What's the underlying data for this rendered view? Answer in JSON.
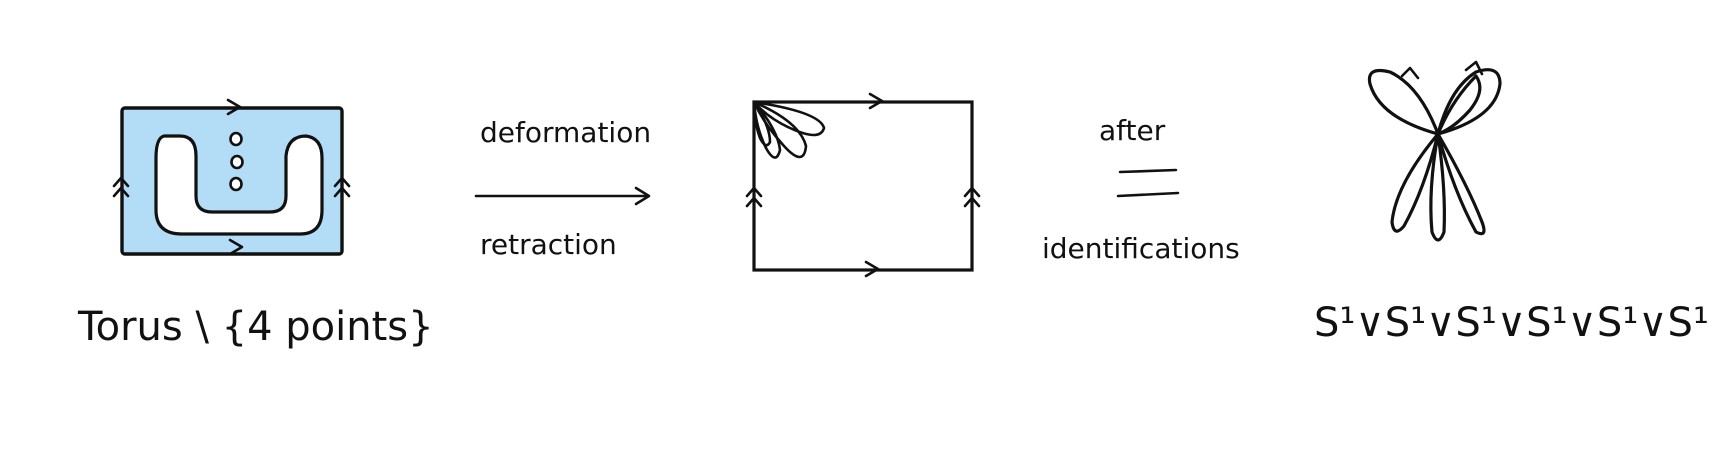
{
  "colors": {
    "ink": "#111111",
    "torus_fill": "#b3dcf6",
    "background": "#ffffff"
  },
  "torus": {
    "label": "Torus \\ {4 points}"
  },
  "arrow": {
    "top_label": "deformation",
    "bottom_label": "retraction"
  },
  "equivalence": {
    "top_label": "after",
    "bottom_label": "identifications"
  },
  "wedge": {
    "label": "S¹∨S¹∨S¹∨S¹∨S¹∨S¹"
  }
}
